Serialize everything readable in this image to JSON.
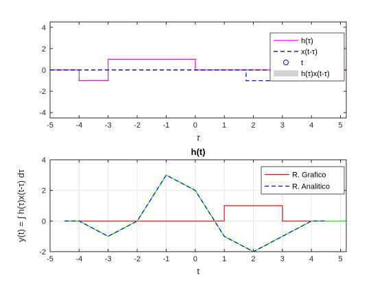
{
  "figure": {
    "background": "#ffffff"
  },
  "chart_data": [
    {
      "type": "line",
      "title": "",
      "xlabel": "τ",
      "ylabel": "",
      "xlim": [
        -5,
        5.2
      ],
      "ylim": [
        -4.5,
        4.5
      ],
      "xticks": [
        -5,
        -4,
        -3,
        -2,
        -1,
        0,
        1,
        2,
        3,
        4,
        5
      ],
      "yticks": [
        -4,
        -2,
        0,
        2,
        4
      ],
      "grid": false,
      "legend": {
        "location": "top-right"
      },
      "series": [
        {
          "name": "h(τ)",
          "style": "solid",
          "color": "#ff00ff",
          "x": [
            -5,
            -4,
            -4,
            -3,
            -3,
            0,
            0,
            5.2
          ],
          "y": [
            0,
            0,
            -1,
            -1,
            1,
            1,
            0,
            0
          ]
        },
        {
          "name": "x(t-τ)",
          "style": "dashed",
          "color": "#000000",
          "x": [
            -5,
            5.2
          ],
          "y": [
            0,
            0
          ]
        },
        {
          "name": "t",
          "style": "marker-circle",
          "color": "#0000ff",
          "x": [],
          "y": []
        },
        {
          "name": "h(τ)x(t-τ)",
          "style": "area",
          "color": "#d3d3d3",
          "x": [],
          "y": []
        },
        {
          "name": "",
          "style": "dashed",
          "color": "#0000ff",
          "x": [
            -5,
            1.75,
            1.75,
            3.75,
            3.75,
            5,
            5,
            5.2
          ],
          "y": [
            0,
            0,
            -1,
            -1,
            0,
            0,
            1,
            1
          ]
        }
      ]
    },
    {
      "type": "line",
      "title": "h(t)",
      "xlabel": "t",
      "ylabel": "y(t) = ∫ h(τ)x(t-τ) dτ",
      "xlim": [
        -5,
        5.2
      ],
      "ylim": [
        -2,
        4
      ],
      "xticks": [
        -5,
        -4,
        -3,
        -2,
        -1,
        0,
        1,
        2,
        3,
        4,
        5
      ],
      "yticks": [
        -2,
        0,
        2,
        4
      ],
      "grid": true,
      "legend": {
        "location": "top-right"
      },
      "series": [
        {
          "name": "R. Grafico",
          "style": "solid",
          "color": "#ff0000",
          "x": [
            -4.5,
            1,
            1,
            3,
            3,
            4.5
          ],
          "y": [
            0,
            0,
            1,
            1,
            0,
            0
          ]
        },
        {
          "name": "",
          "style": "solid",
          "color": "#00ff00",
          "x": [
            -4.5,
            -4,
            -3,
            -2,
            -1,
            0,
            1,
            2,
            3,
            4,
            5.2
          ],
          "y": [
            0,
            0,
            -1,
            0,
            3,
            2,
            -1,
            -2,
            -1,
            0,
            0
          ]
        },
        {
          "name": "R. Analitico",
          "style": "dashed",
          "color": "#0000ff",
          "x": [
            -4.5,
            -4,
            -3,
            -2,
            -1,
            0,
            1,
            2,
            3,
            4,
            4.5
          ],
          "y": [
            0,
            0,
            -1,
            0,
            3,
            2,
            -1,
            -2,
            -1,
            0,
            0
          ]
        }
      ]
    }
  ]
}
